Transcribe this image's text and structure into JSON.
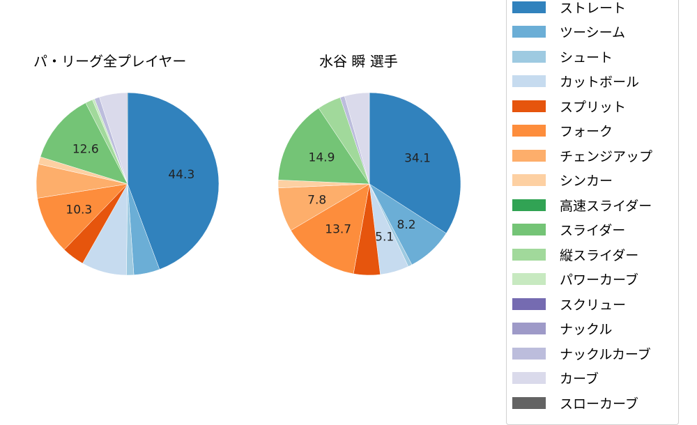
{
  "chart_data": [
    {
      "type": "pie",
      "title": "パ・リーグ全プレイヤー",
      "center": [
        183,
        264
      ],
      "radius": 131,
      "start_angle_deg": 90,
      "direction": "clockwise",
      "categories": [
        "ストレート",
        "ツーシーム",
        "シュート",
        "カットボール",
        "スプリット",
        "フォーク",
        "チェンジアップ",
        "シンカー",
        "高速スライダー",
        "スライダー",
        "縦スライダー",
        "パワーカーブ",
        "スクリュー",
        "ナックル",
        "ナックルカーブ",
        "カーブ",
        "スローカーブ"
      ],
      "values": [
        44.3,
        4.6,
        1.3,
        8.0,
        4.0,
        10.3,
        6.0,
        1.3,
        0.0,
        12.6,
        1.3,
        0.4,
        0.0,
        0.0,
        0.9,
        4.9,
        0.1
      ],
      "labels_shown": [
        {
          "category": "ストレート",
          "text": "44.3"
        },
        {
          "category": "フォーク",
          "text": "10.3"
        },
        {
          "category": "スライダー",
          "text": "12.6"
        }
      ]
    },
    {
      "type": "pie",
      "title": "水谷 瞬  選手",
      "center": [
        530,
        264
      ],
      "radius": 131,
      "start_angle_deg": 90,
      "direction": "clockwise",
      "categories": [
        "ストレート",
        "ツーシーム",
        "シュート",
        "カットボール",
        "スプリット",
        "フォーク",
        "チェンジアップ",
        "シンカー",
        "高速スライダー",
        "スライダー",
        "縦スライダー",
        "パワーカーブ",
        "スクリュー",
        "ナックル",
        "ナックルカーブ",
        "カーブ",
        "スローカーブ"
      ],
      "values": [
        34.1,
        8.2,
        0.7,
        5.1,
        4.7,
        13.7,
        7.8,
        1.4,
        0.0,
        14.9,
        4.2,
        0.0,
        0.0,
        0.0,
        0.8,
        4.4,
        0.0
      ],
      "labels_shown": [
        {
          "category": "ストレート",
          "text": "34.1"
        },
        {
          "category": "ツーシーム",
          "text": "8.2"
        },
        {
          "category": "カットボール",
          "text": "5.1"
        },
        {
          "category": "フォーク",
          "text": "13.7"
        },
        {
          "category": "チェンジアップ",
          "text": "7.8"
        },
        {
          "category": "スライダー",
          "text": "14.9"
        }
      ]
    }
  ],
  "titles": {
    "left": "パ・リーグ全プレイヤー",
    "right": "水谷 瞬  選手"
  },
  "legend": {
    "items": [
      {
        "label": "ストレート",
        "color": "#3182bd"
      },
      {
        "label": "ツーシーム",
        "color": "#6baed6"
      },
      {
        "label": "シュート",
        "color": "#9ecae1"
      },
      {
        "label": "カットボール",
        "color": "#c6dbef"
      },
      {
        "label": "スプリット",
        "color": "#e6550d"
      },
      {
        "label": "フォーク",
        "color": "#fd8d3c"
      },
      {
        "label": "チェンジアップ",
        "color": "#fdae6b"
      },
      {
        "label": "シンカー",
        "color": "#fdd0a2"
      },
      {
        "label": "高速スライダー",
        "color": "#31a354"
      },
      {
        "label": "スライダー",
        "color": "#74c476"
      },
      {
        "label": "縦スライダー",
        "color": "#a1d99b"
      },
      {
        "label": "パワーカーブ",
        "color": "#c7e9c0"
      },
      {
        "label": "スクリュー",
        "color": "#756bb1"
      },
      {
        "label": "ナックル",
        "color": "#9e9ac8"
      },
      {
        "label": "ナックルカーブ",
        "color": "#bcbddc"
      },
      {
        "label": "カーブ",
        "color": "#dadaeb"
      },
      {
        "label": "スローカーブ",
        "color": "#636363"
      }
    ]
  }
}
